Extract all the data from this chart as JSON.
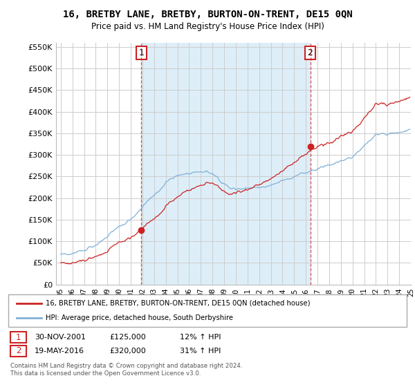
{
  "title": "16, BRETBY LANE, BRETBY, BURTON-ON-TRENT, DE15 0QN",
  "subtitle": "Price paid vs. HM Land Registry's House Price Index (HPI)",
  "ylim": [
    0,
    560000
  ],
  "yticks": [
    0,
    50000,
    100000,
    150000,
    200000,
    250000,
    300000,
    350000,
    400000,
    450000,
    500000,
    550000
  ],
  "ytick_labels": [
    "£0",
    "£50K",
    "£100K",
    "£150K",
    "£200K",
    "£250K",
    "£300K",
    "£350K",
    "£400K",
    "£450K",
    "£500K",
    "£550K"
  ],
  "hpi_color": "#7fb0d8",
  "price_color": "#cc2222",
  "shade_color": "#ddeef8",
  "purchase1_date": 2001.917,
  "purchase1_price": 125000,
  "purchase1_label": "1",
  "purchase2_date": 2016.38,
  "purchase2_price": 320000,
  "purchase2_label": "2",
  "legend_line1": "16, BRETBY LANE, BRETBY, BURTON-ON-TRENT, DE15 0QN (detached house)",
  "legend_line2": "HPI: Average price, detached house, South Derbyshire",
  "note1_label": "1",
  "note1_date": "30-NOV-2001",
  "note1_price": "£125,000",
  "note1_hpi": "12% ↑ HPI",
  "note2_label": "2",
  "note2_date": "19-MAY-2016",
  "note2_price": "£320,000",
  "note2_hpi": "31% ↑ HPI",
  "footer": "Contains HM Land Registry data © Crown copyright and database right 2024.\nThis data is licensed under the Open Government Licence v3.0.",
  "background_color": "#ffffff",
  "grid_color": "#cccccc"
}
